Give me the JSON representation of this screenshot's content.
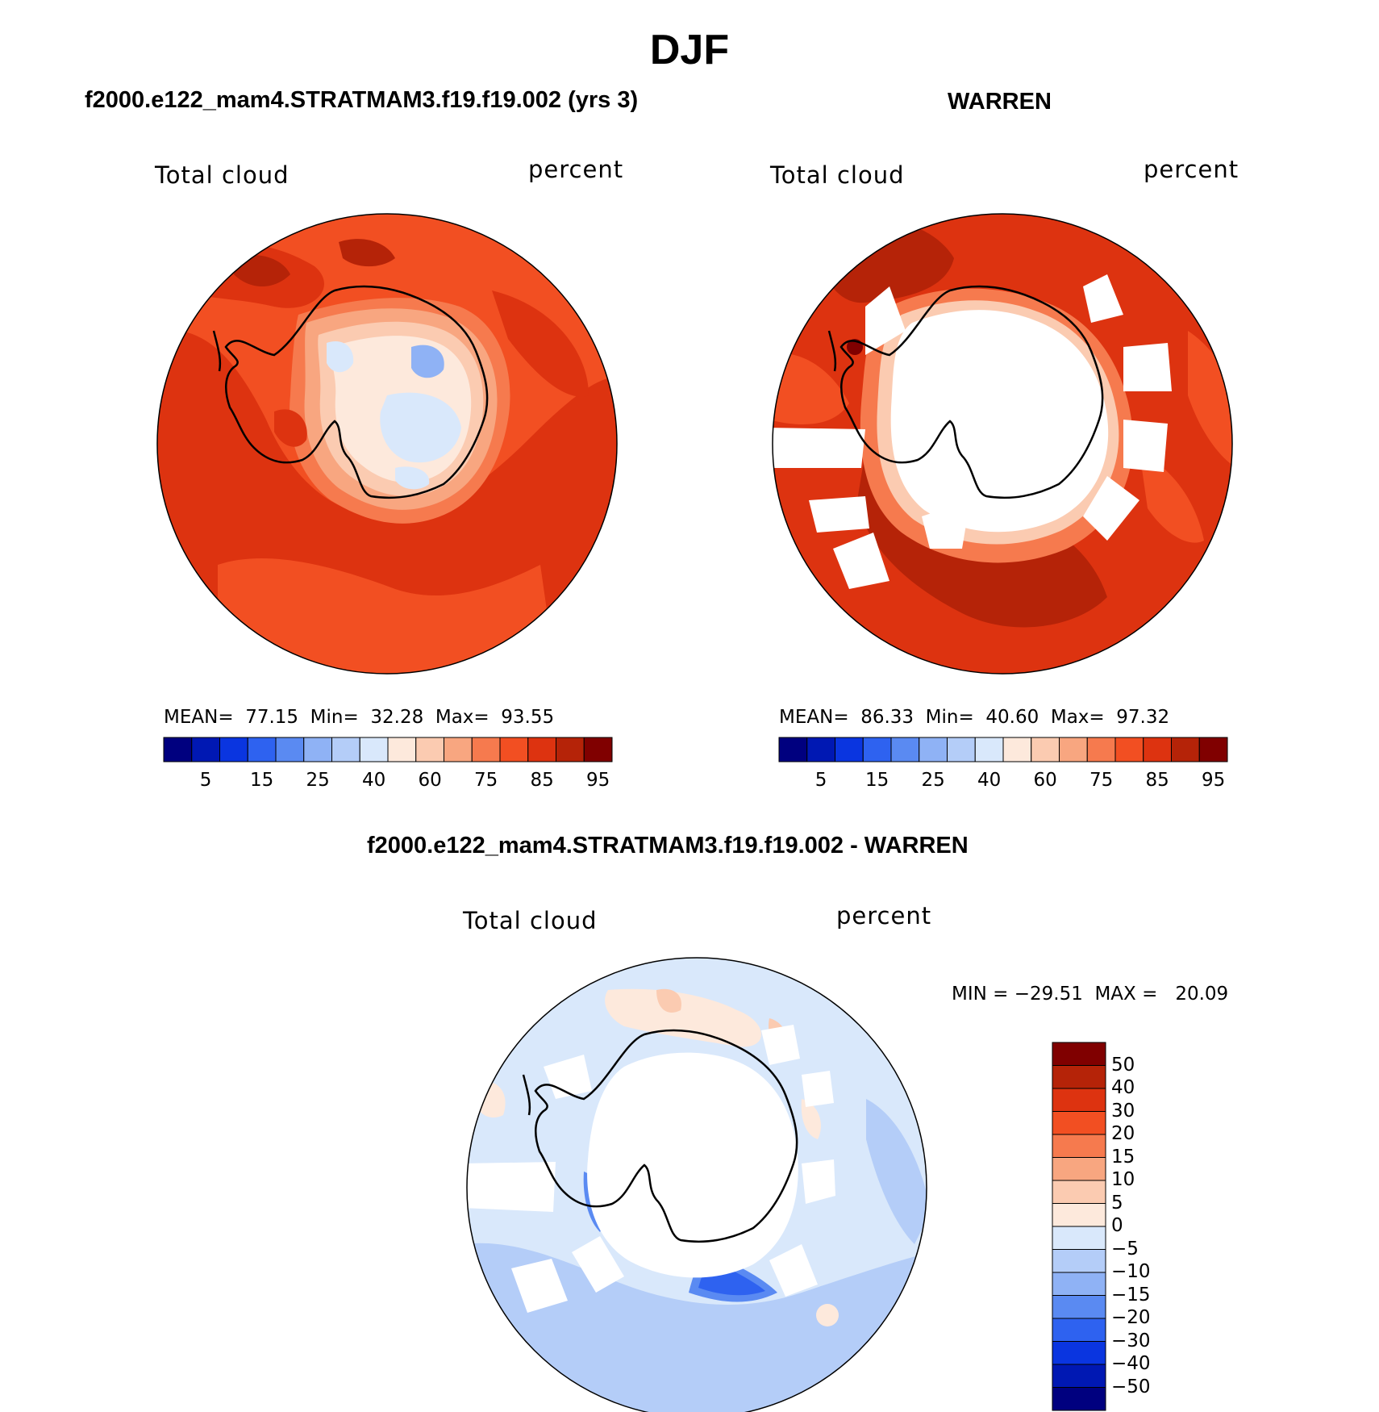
{
  "title": "DJF",
  "panels": [
    {
      "heading": "f2000.e122_mam4.STRATMAM3.f19.f19.002 (yrs 3)",
      "variable": "Total cloud",
      "units": "percent",
      "stats": "MEAN=  77.15  Min=  32.28  Max=  93.55",
      "colorbar_ticks": [
        "5",
        "15",
        "25",
        "40",
        "60",
        "75",
        "85",
        "95"
      ]
    },
    {
      "heading": "WARREN",
      "variable": "Total cloud",
      "units": "percent",
      "stats": "MEAN=  86.33  Min=  40.60  Max=  97.32",
      "colorbar_ticks": [
        "5",
        "15",
        "25",
        "40",
        "60",
        "75",
        "85",
        "95"
      ]
    },
    {
      "heading": "f2000.e122_mam4.STRATMAM3.f19.f19.002 - WARREN",
      "variable": "Total cloud",
      "units": "percent",
      "stats": "MIN = −29.51  MAX =   20.09",
      "colorbar_ticks": [
        "50",
        "40",
        "30",
        "20",
        "15",
        "10",
        "5",
        "0",
        "−5",
        "−10",
        "−15",
        "−20",
        "−30",
        "−40",
        "−50"
      ]
    }
  ],
  "colors": {
    "abs_scale": [
      "#00007f",
      "#0018b3",
      "#0a35e0",
      "#2e62f0",
      "#5a8af2",
      "#8fb2f5",
      "#b4cdf8",
      "#d9e8fb",
      "#fde9dc",
      "#fbcbb1",
      "#f8a680",
      "#f67a4e",
      "#f24f22",
      "#dd3310",
      "#b52308",
      "#800000"
    ],
    "diff_scale": [
      "#800000",
      "#b52308",
      "#dd3310",
      "#f24f22",
      "#f67a4e",
      "#f8a680",
      "#fbcbb1",
      "#fde9dc",
      "#d9e8fb",
      "#b4cdf8",
      "#8fb2f5",
      "#5a8af2",
      "#2e62f0",
      "#0a35e0",
      "#0018b3",
      "#00007f"
    ]
  }
}
